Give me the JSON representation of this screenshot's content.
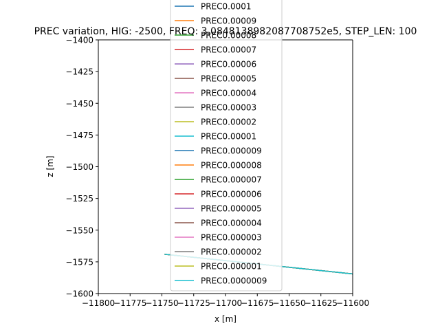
{
  "chart_data": {
    "type": "line",
    "title": "PREC variation, HIG: -2500, FREQ: 3.0848138982087708752e5, STEP_LEN: 100",
    "xlabel": "x [m]",
    "ylabel": "z [m]",
    "xlim": [
      -11800,
      -11600
    ],
    "ylim": [
      -1600,
      -1400
    ],
    "x_ticks": [
      -11800,
      -11775,
      -11750,
      -11725,
      -11700,
      -11675,
      -11650,
      -11625,
      -11600
    ],
    "y_ticks": [
      -1400,
      -1425,
      -1450,
      -1475,
      -1500,
      -1525,
      -1550,
      -1575,
      -1600
    ],
    "grid": false,
    "legend_position": "upper center, overlapping the plot",
    "series": [
      {
        "name": "PREC0.0001",
        "color": "#1f77b4",
        "x": [
          -11748,
          -11600
        ],
        "y": [
          -1569,
          -1584.5
        ]
      },
      {
        "name": "PREC0.00009",
        "color": "#ff7f0e",
        "x": [
          -11748,
          -11600
        ],
        "y": [
          -1569,
          -1584.5
        ]
      },
      {
        "name": "PREC0.00008",
        "color": "#2ca02c",
        "x": [
          -11748,
          -11600
        ],
        "y": [
          -1569,
          -1584.5
        ]
      },
      {
        "name": "PREC0.00007",
        "color": "#d62728",
        "x": [
          -11748,
          -11600
        ],
        "y": [
          -1569,
          -1584.5
        ]
      },
      {
        "name": "PREC0.00006",
        "color": "#9467bd",
        "x": [
          -11748,
          -11600
        ],
        "y": [
          -1569,
          -1584.5
        ]
      },
      {
        "name": "PREC0.00005",
        "color": "#8c564b",
        "x": [
          -11748,
          -11600
        ],
        "y": [
          -1569,
          -1584.5
        ]
      },
      {
        "name": "PREC0.00004",
        "color": "#e377c2",
        "x": [
          -11748,
          -11600
        ],
        "y": [
          -1569,
          -1584.5
        ]
      },
      {
        "name": "PREC0.00003",
        "color": "#7f7f7f",
        "x": [
          -11748,
          -11600
        ],
        "y": [
          -1569,
          -1584.5
        ]
      },
      {
        "name": "PREC0.00002",
        "color": "#bcbd22",
        "x": [
          -11748,
          -11600
        ],
        "y": [
          -1569,
          -1584.5
        ]
      },
      {
        "name": "PREC0.00001",
        "color": "#17becf",
        "x": [
          -11748,
          -11600
        ],
        "y": [
          -1569,
          -1584.5
        ]
      },
      {
        "name": "PREC0.000009",
        "color": "#1f77b4",
        "x": [
          -11748,
          -11600
        ],
        "y": [
          -1569,
          -1584.5
        ]
      },
      {
        "name": "PREC0.000008",
        "color": "#ff7f0e",
        "x": [
          -11748,
          -11600
        ],
        "y": [
          -1569,
          -1584.5
        ]
      },
      {
        "name": "PREC0.000007",
        "color": "#2ca02c",
        "x": [
          -11748,
          -11600
        ],
        "y": [
          -1569,
          -1584.5
        ]
      },
      {
        "name": "PREC0.000006",
        "color": "#d62728",
        "x": [
          -11748,
          -11600
        ],
        "y": [
          -1569,
          -1584.5
        ]
      },
      {
        "name": "PREC0.000005",
        "color": "#9467bd",
        "x": [
          -11748,
          -11600
        ],
        "y": [
          -1569,
          -1584.5
        ]
      },
      {
        "name": "PREC0.000004",
        "color": "#8c564b",
        "x": [
          -11748,
          -11600
        ],
        "y": [
          -1569,
          -1584.5
        ]
      },
      {
        "name": "PREC0.000003",
        "color": "#e377c2",
        "x": [
          -11748,
          -11600
        ],
        "y": [
          -1569,
          -1584.5
        ]
      },
      {
        "name": "PREC0.000002",
        "color": "#7f7f7f",
        "x": [
          -11748,
          -11600
        ],
        "y": [
          -1569,
          -1584.5
        ]
      },
      {
        "name": "PREC0.000001",
        "color": "#bcbd22",
        "x": [
          -11748,
          -11600
        ],
        "y": [
          -1569,
          -1584.5
        ]
      },
      {
        "name": "PREC0.0000009",
        "color": "#17becf",
        "x": [
          -11748,
          -11600
        ],
        "y": [
          -1569,
          -1584.5
        ]
      }
    ]
  }
}
